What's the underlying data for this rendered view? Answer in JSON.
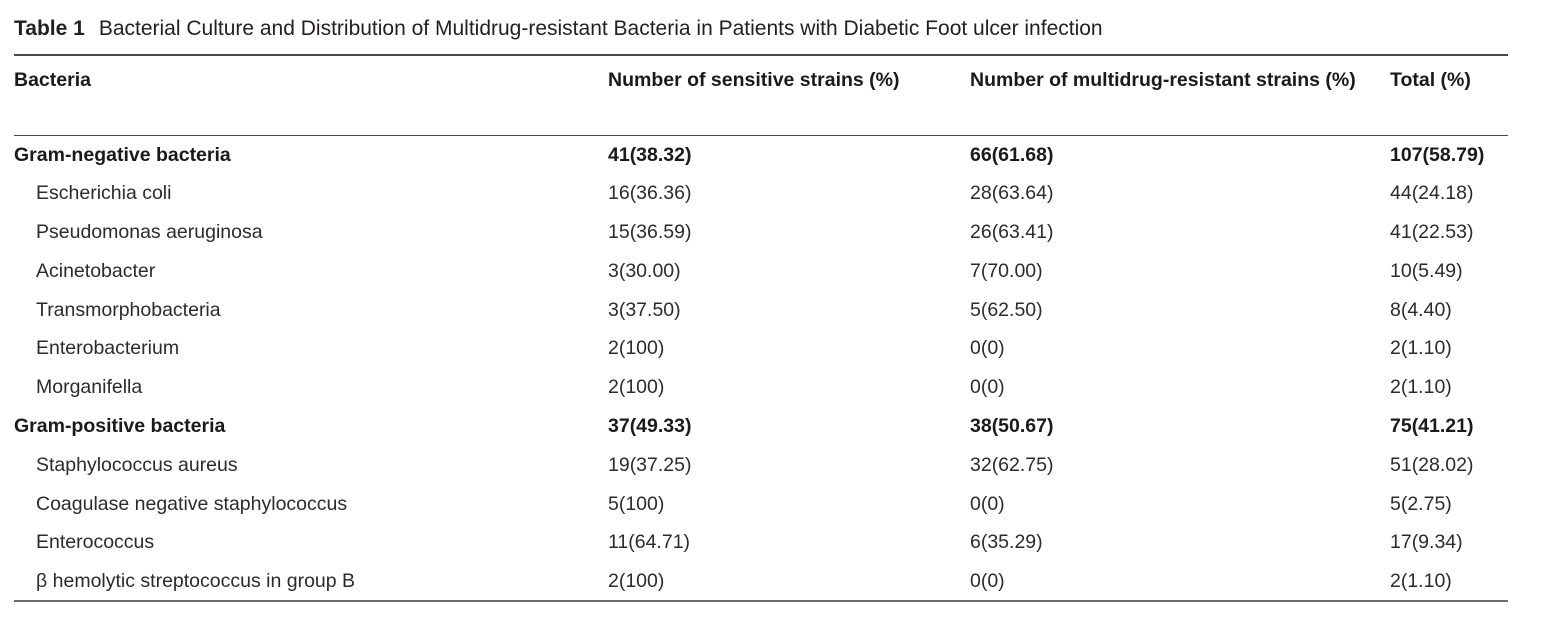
{
  "table": {
    "label": "Table 1",
    "title": "Bacterial Culture and Distribution of Multidrug-resistant Bacteria in Patients with Diabetic Foot ulcer infection",
    "columns": [
      "Bacteria",
      "Number of sensitive strains (%)",
      "Number of multidrug-resistant strains (%)",
      "Total (%)"
    ],
    "rows": [
      {
        "bacteria": "Gram-negative bacteria",
        "sensitive": "41(38.32)",
        "resistant": "66(61.68)",
        "total": "107(58.79)",
        "group": true
      },
      {
        "bacteria": "Escherichia coli",
        "sensitive": "16(36.36)",
        "resistant": "28(63.64)",
        "total": "44(24.18)",
        "group": false
      },
      {
        "bacteria": "Pseudomonas aeruginosa",
        "sensitive": "15(36.59)",
        "resistant": "26(63.41)",
        "total": "41(22.53)",
        "group": false
      },
      {
        "bacteria": "Acinetobacter",
        "sensitive": "3(30.00)",
        "resistant": "7(70.00)",
        "total": "10(5.49)",
        "group": false
      },
      {
        "bacteria": "Transmorphobacteria",
        "sensitive": "3(37.50)",
        "resistant": "5(62.50)",
        "total": "8(4.40)",
        "group": false
      },
      {
        "bacteria": "Enterobacterium",
        "sensitive": "2(100)",
        "resistant": "0(0)",
        "total": "2(1.10)",
        "group": false
      },
      {
        "bacteria": "Morganifella",
        "sensitive": "2(100)",
        "resistant": "0(0)",
        "total": "2(1.10)",
        "group": false
      },
      {
        "bacteria": "Gram-positive bacteria",
        "sensitive": "37(49.33)",
        "resistant": "38(50.67)",
        "total": "75(41.21)",
        "group": true
      },
      {
        "bacteria": "Staphylococcus aureus",
        "sensitive": "19(37.25)",
        "resistant": "32(62.75)",
        "total": "51(28.02)",
        "group": false
      },
      {
        "bacteria": "Coagulase negative staphylococcus",
        "sensitive": "5(100)",
        "resistant": "0(0)",
        "total": "5(2.75)",
        "group": false
      },
      {
        "bacteria": "Enterococcus",
        "sensitive": "11(64.71)",
        "resistant": "6(35.29)",
        "total": "17(9.34)",
        "group": false
      },
      {
        "bacteria": "β hemolytic streptococcus in group B",
        "sensitive": "2(100)",
        "resistant": "0(0)",
        "total": "2(1.10)",
        "group": false
      }
    ]
  },
  "colors": {
    "text": "#231f20",
    "rule_dark": "#47484a",
    "rule_bottom": "#6d6e71",
    "background": "#ffffff"
  }
}
